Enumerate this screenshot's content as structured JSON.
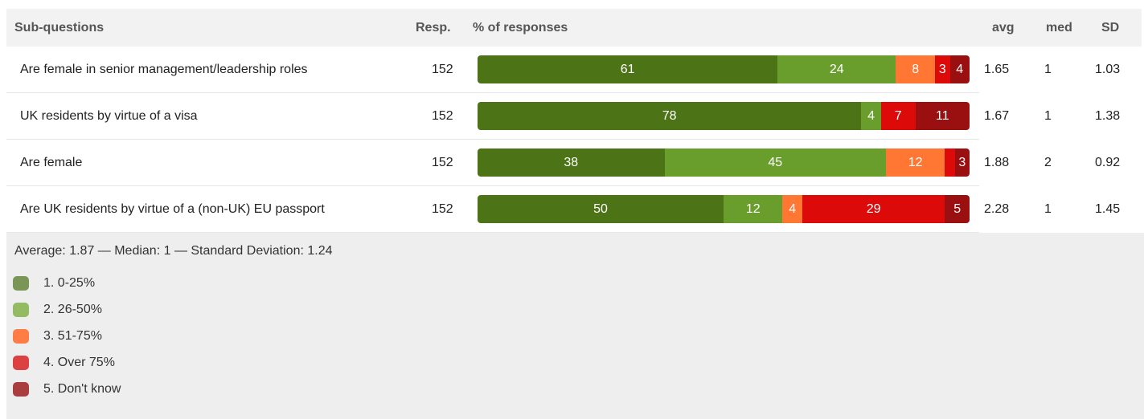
{
  "header": {
    "subq": "Sub-questions",
    "resp": "Resp.",
    "pct": "% of responses",
    "avg": "avg",
    "med": "med",
    "sd": "SD"
  },
  "colors": [
    "#4d7317",
    "#6a9e2c",
    "#ff7733",
    "#dd0a0a",
    "#9a0f0f"
  ],
  "legend_colors": [
    "#7a9656",
    "#94bb62",
    "#ff7d45",
    "#dc4040",
    "#aa3d3d"
  ],
  "chart_data": {
    "type": "bar",
    "stacked": true,
    "orientation": "horizontal",
    "unit": "% of responses",
    "categories": [
      "Are female in senior management/leadership roles",
      "UK residents by virtue of a visa",
      "Are female",
      "Are UK residents by virtue of a (non-UK) EU passport"
    ],
    "series": [
      {
        "name": "1. 0-25%",
        "values": [
          61,
          78,
          38,
          50
        ]
      },
      {
        "name": "2. 26-50%",
        "values": [
          24,
          4,
          45,
          12
        ]
      },
      {
        "name": "3. 51-75%",
        "values": [
          8,
          0,
          12,
          4
        ]
      },
      {
        "name": "4. Over 75%",
        "values": [
          3,
          7,
          2,
          29
        ]
      },
      {
        "name": "5. Don't know",
        "values": [
          4,
          11,
          3,
          5
        ]
      }
    ],
    "segment_labels": [
      [
        "61",
        "24",
        "8",
        "3",
        "4"
      ],
      [
        "78",
        "4",
        "",
        "7",
        "11"
      ],
      [
        "38",
        "45",
        "12",
        "",
        "3"
      ],
      [
        "50",
        "12",
        "4",
        "29",
        "5"
      ]
    ]
  },
  "rows": [
    {
      "label": "Are female in senior management/leadership roles",
      "resp": "152",
      "avg": "1.65",
      "med": "1",
      "sd": "1.03"
    },
    {
      "label": "UK residents by virtue of a visa",
      "resp": "152",
      "avg": "1.67",
      "med": "1",
      "sd": "1.38"
    },
    {
      "label": "Are female",
      "resp": "152",
      "avg": "1.88",
      "med": "2",
      "sd": "0.92"
    },
    {
      "label": "Are UK residents by virtue of a (non-UK) EU passport",
      "resp": "152",
      "avg": "2.28",
      "med": "1",
      "sd": "1.45"
    }
  ],
  "summary": "Average: 1.87 — Median: 1 — Standard Deviation: 1.24",
  "legend": [
    "1. 0-25%",
    "2. 26-50%",
    "3. 51-75%",
    "4. Over 75%",
    "5. Don't know"
  ]
}
